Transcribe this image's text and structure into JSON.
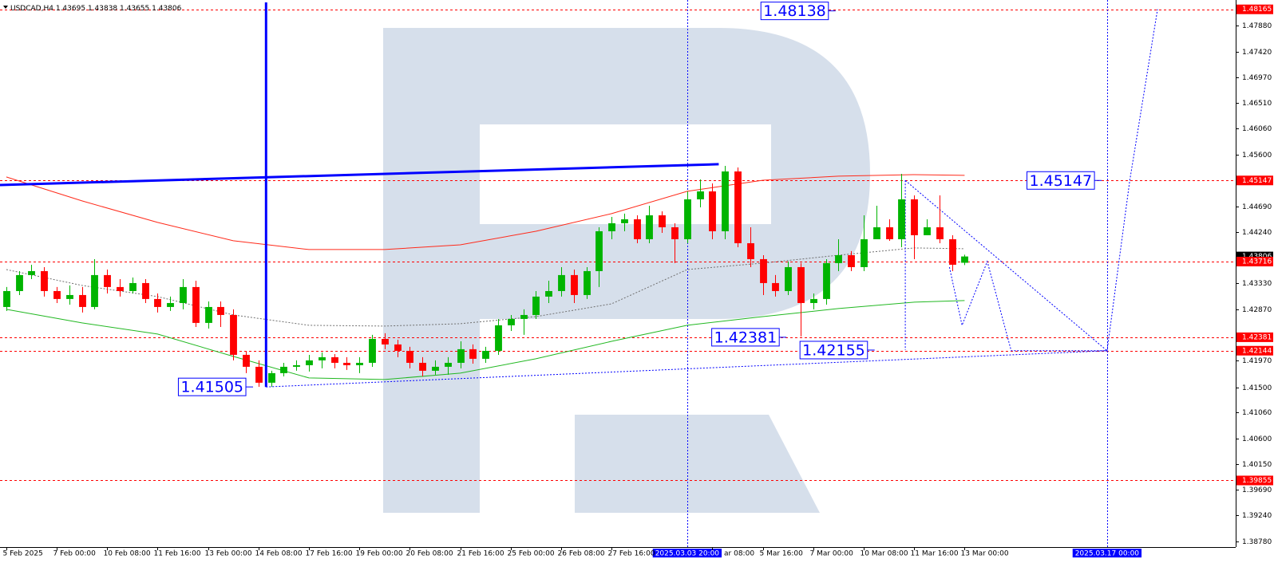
{
  "header": {
    "symbol": "USDCAD,H4",
    "ohlc": [
      1.43695,
      1.43838,
      1.43655,
      1.43806
    ]
  },
  "chart_data": {
    "type": "candlestick",
    "categories": [
      "5 Feb 2025",
      null,
      null,
      null,
      "7 Feb 00:00",
      null,
      null,
      null,
      "10 Feb 08:00",
      null,
      null,
      null,
      "11 Feb 16:00",
      null,
      null,
      null,
      "13 Feb 00:00",
      null,
      null,
      null,
      "14 Feb 08:00",
      null,
      null,
      null,
      "17 Feb 16:00",
      null,
      null,
      null,
      "19 Feb 00:00",
      null,
      null,
      null,
      "20 Feb 08:00",
      null,
      null,
      null,
      "21 Feb 16:00",
      null,
      null,
      null,
      "25 Feb 00:00",
      null,
      null,
      null,
      "26 Feb 08:00",
      null,
      null,
      null,
      "27 Feb 16:00",
      null,
      null,
      null,
      null,
      null,
      null,
      null,
      "ar 08:00",
      null,
      null,
      null,
      "5 Mar 16:00",
      null,
      null,
      null,
      "7 Mar 00:00",
      null,
      null,
      null,
      "10 Mar 08:00",
      null,
      null,
      null,
      "11 Mar 16:00",
      null,
      null,
      null,
      "13 Mar 00:00"
    ],
    "values": [
      [
        1.42915,
        1.43267,
        1.42845,
        1.43196
      ],
      [
        1.43196,
        1.43548,
        1.43126,
        1.43478
      ],
      [
        1.43478,
        1.4366,
        1.43407,
        1.43548
      ],
      [
        1.43548,
        1.43618,
        1.43098,
        1.43196
      ],
      [
        1.43196,
        1.43267,
        1.42985,
        1.43056
      ],
      [
        1.43056,
        1.43295,
        1.42957,
        1.43126
      ],
      [
        1.43126,
        1.43267,
        1.42817,
        1.42915
      ],
      [
        1.42915,
        1.43759,
        1.42873,
        1.43478
      ],
      [
        1.43478,
        1.43576,
        1.43154,
        1.43267
      ],
      [
        1.43267,
        1.43407,
        1.43098,
        1.43196
      ],
      [
        1.43196,
        1.43435,
        1.43154,
        1.43337
      ],
      [
        1.43337,
        1.43407,
        1.42985,
        1.43056
      ],
      [
        1.43056,
        1.43154,
        1.42817,
        1.42915
      ],
      [
        1.42915,
        1.43098,
        1.42845,
        1.42985
      ],
      [
        1.42985,
        1.43407,
        1.42873,
        1.43267
      ],
      [
        1.43267,
        1.43379,
        1.42563,
        1.42634
      ],
      [
        1.42634,
        1.43013,
        1.42535,
        1.42915
      ],
      [
        1.42915,
        1.43013,
        1.42563,
        1.42774
      ],
      [
        1.42774,
        1.42873,
        1.41973,
        1.42071
      ],
      [
        1.42071,
        1.42141,
        1.41748,
        1.4186
      ],
      [
        1.4186,
        1.41973,
        1.41508,
        1.41579
      ],
      [
        1.41579,
        1.4179,
        1.41508,
        1.41748
      ],
      [
        1.41748,
        1.4193,
        1.41691,
        1.4186
      ],
      [
        1.4186,
        1.41973,
        1.4179,
        1.41888
      ],
      [
        1.41888,
        1.42071,
        1.41776,
        1.41973
      ],
      [
        1.41973,
        1.42113,
        1.41832,
        1.42029
      ],
      [
        1.42029,
        1.42085,
        1.41832,
        1.4193
      ],
      [
        1.4193,
        1.42029,
        1.41804,
        1.41888
      ],
      [
        1.41888,
        1.42029,
        1.41748,
        1.4193
      ],
      [
        1.4193,
        1.42423,
        1.4186,
        1.42352
      ],
      [
        1.42352,
        1.42451,
        1.4217,
        1.42254
      ],
      [
        1.42254,
        1.42338,
        1.42029,
        1.42141
      ],
      [
        1.42141,
        1.42212,
        1.41832,
        1.4193
      ],
      [
        1.4193,
        1.42029,
        1.41691,
        1.4179
      ],
      [
        1.4179,
        1.41973,
        1.4172,
        1.4186
      ],
      [
        1.4186,
        1.42029,
        1.4172,
        1.4193
      ],
      [
        1.4193,
        1.4231,
        1.41832,
        1.4217
      ],
      [
        1.4217,
        1.42254,
        1.41916,
        1.42001
      ],
      [
        1.42001,
        1.42212,
        1.4193,
        1.42141
      ],
      [
        1.42141,
        1.42704,
        1.42071,
        1.42592
      ],
      [
        1.42592,
        1.42774,
        1.42493,
        1.42704
      ],
      [
        1.42704,
        1.42873,
        1.42423,
        1.42774
      ],
      [
        1.42774,
        1.43196,
        1.42704,
        1.43098
      ],
      [
        1.43098,
        1.43379,
        1.42985,
        1.43196
      ],
      [
        1.43196,
        1.43618,
        1.43098,
        1.43478
      ],
      [
        1.43478,
        1.43576,
        1.42985,
        1.43126
      ],
      [
        1.43126,
        1.43618,
        1.43056,
        1.43548
      ],
      [
        1.43548,
        1.44321,
        1.43267,
        1.44251
      ],
      [
        1.44251,
        1.44504,
        1.4411,
        1.44392
      ],
      [
        1.44392,
        1.44561,
        1.44251,
        1.44462
      ],
      [
        1.44462,
        1.44532,
        1.4404,
        1.4411
      ],
      [
        1.4411,
        1.44701,
        1.4404,
        1.44532
      ],
      [
        1.44532,
        1.44603,
        1.44223,
        1.44321
      ],
      [
        1.44321,
        1.44392,
        1.43689,
        1.4411
      ],
      [
        1.4411,
        1.44954,
        1.4404,
        1.44814
      ],
      [
        1.44814,
        1.45165,
        1.44673,
        1.44954
      ],
      [
        1.44954,
        1.45095,
        1.4411,
        1.44251
      ],
      [
        1.44251,
        1.45404,
        1.4411,
        1.45306
      ],
      [
        1.45306,
        1.45376,
        1.4397,
        1.4404
      ],
      [
        1.4404,
        1.44321,
        1.43618,
        1.43759
      ],
      [
        1.43759,
        1.43829,
        1.43126,
        1.43337
      ],
      [
        1.43337,
        1.43478,
        1.43098,
        1.43196
      ],
      [
        1.43196,
        1.43717,
        1.43126,
        1.43618
      ],
      [
        1.43618,
        1.43689,
        1.42395,
        1.42985
      ],
      [
        1.42985,
        1.43154,
        1.42873,
        1.43056
      ],
      [
        1.43056,
        1.43759,
        1.42957,
        1.43689
      ],
      [
        1.43689,
        1.4411,
        1.43548,
        1.43829
      ],
      [
        1.43829,
        1.439,
        1.43548,
        1.43618
      ],
      [
        1.43618,
        1.44532,
        1.43548,
        1.4411
      ],
      [
        1.4411,
        1.44701,
        1.4411,
        1.44321
      ],
      [
        1.44321,
        1.44462,
        1.44082,
        1.4411
      ],
      [
        1.4411,
        1.45264,
        1.4397,
        1.44814
      ],
      [
        1.44814,
        1.44884,
        1.43759,
        1.44181
      ],
      [
        1.44181,
        1.44462,
        1.44181,
        1.44321
      ],
      [
        1.44321,
        1.44884,
        1.4404,
        1.4411
      ],
      [
        1.4411,
        1.44181,
        1.43548,
        1.4366
      ],
      [
        1.43695,
        1.43838,
        1.43655,
        1.43806
      ]
    ],
    "up_color": "#00b400",
    "down_color": "#ff0000",
    "lines": [
      {
        "color": "#ff2a1a",
        "style": "solid",
        "x": [
          0,
          6,
          12,
          18,
          24,
          30,
          36,
          42,
          48,
          54,
          60,
          66,
          72,
          76
        ],
        "values": [
          1.45208,
          1.44786,
          1.44406,
          1.44083,
          1.43928,
          1.43928,
          1.44012,
          1.44251,
          1.44561,
          1.44955,
          1.45151,
          1.45222,
          1.4525,
          1.45236
        ]
      },
      {
        "color": "#707070",
        "style": "dotted",
        "x": [
          0,
          6,
          12,
          18,
          24,
          30,
          36,
          42,
          48,
          54,
          60,
          66,
          72,
          76
        ],
        "values": [
          1.43576,
          1.43295,
          1.43098,
          1.42775,
          1.42592,
          1.42578,
          1.4262,
          1.42746,
          1.42971,
          1.43576,
          1.43689,
          1.43829,
          1.43956,
          1.43942
        ]
      },
      {
        "color": "#22b822",
        "style": "solid",
        "x": [
          0,
          6,
          12,
          18,
          24,
          30,
          36,
          42,
          48,
          54,
          60,
          66,
          72,
          76
        ],
        "values": [
          1.42873,
          1.42634,
          1.42437,
          1.42043,
          1.41663,
          1.41635,
          1.41748,
          1.42001,
          1.4231,
          1.42592,
          1.42746,
          1.42887,
          1.43,
          1.43028
        ]
      },
      {
        "color": "#0000ff",
        "style": "thick",
        "x": [
          -0.5,
          56.5
        ],
        "values": [
          1.45067,
          1.45433
        ]
      },
      {
        "color": "#0000ff",
        "style": "thick",
        "x": [
          20.6,
          20.6
        ],
        "values": [
          1.48288,
          1.41505
        ]
      },
      {
        "color": "#0000ff",
        "style": "dotted",
        "x": [
          20.6,
          87.3
        ],
        "values": [
          1.41505,
          1.42144
        ]
      },
      {
        "color": "#0000ff",
        "style": "dotted",
        "x": [
          71.3,
          71.3
        ],
        "values": [
          1.45147,
          1.42155
        ]
      },
      {
        "color": "#0000ff",
        "style": "dotted",
        "x": [
          71.3,
          87.3
        ],
        "values": [
          1.45147,
          1.42144
        ]
      },
      {
        "color": "#0000ff",
        "style": "dotted",
        "x": [
          74.8,
          75.8,
          77.8,
          79.7,
          87.3,
          89.1,
          91.3
        ],
        "values": [
          1.43618,
          1.42592,
          1.43717,
          1.42144,
          1.42144,
          1.45147,
          1.48165
        ]
      }
    ],
    "levels": [
      1.48165,
      1.45147,
      1.43716,
      1.42381,
      1.42144,
      1.39855
    ],
    "level_color": "#ff0000",
    "bid": 1.43806,
    "annotations": [
      {
        "value": 1.48138,
        "x": 65.2
      },
      {
        "value": 1.45147,
        "x": 86.3
      },
      {
        "value": 1.42381,
        "x": 61.3
      },
      {
        "value": 1.42155,
        "x": 68.3
      },
      {
        "value": 1.41505,
        "x": 19
      }
    ],
    "vlines": [
      {
        "x": 54,
        "label": "2025.03.03 20:00"
      },
      {
        "x": 87.3,
        "label": "2025.03.17 00:00"
      }
    ],
    "vline_color": "#0000ff",
    "xlim": [
      -0.5,
      97.5
    ],
    "ylim": [
      1.3868,
      1.4833
    ],
    "yticks": [
      {
        "value": 1.4788,
        "label": "1.47880"
      },
      {
        "value": 1.4742,
        "label": "1.47420"
      },
      {
        "value": 1.4697,
        "label": "1.46970"
      },
      {
        "value": 1.4651,
        "label": "1.46510"
      },
      {
        "value": 1.4606,
        "label": "1.46060"
      },
      {
        "value": 1.456,
        "label": "1.45600"
      },
      {
        "value": 1.4469,
        "label": "1.44690"
      },
      {
        "value": 1.4424,
        "label": "1.44240"
      },
      {
        "value": 1.4333,
        "label": "1.43330"
      },
      {
        "value": 1.4287,
        "label": "1.42870"
      },
      {
        "value": 1.4197,
        "label": "1.41970"
      },
      {
        "value": 1.415,
        "label": "1.41500"
      },
      {
        "value": 1.4106,
        "label": "1.41060"
      },
      {
        "value": 1.406,
        "label": "1.40600"
      },
      {
        "value": 1.4015,
        "label": "1.40150"
      },
      {
        "value": 1.3969,
        "label": "1.39690"
      },
      {
        "value": 1.3924,
        "label": "1.39240"
      },
      {
        "value": 1.3878,
        "label": "1.38780"
      }
    ]
  }
}
